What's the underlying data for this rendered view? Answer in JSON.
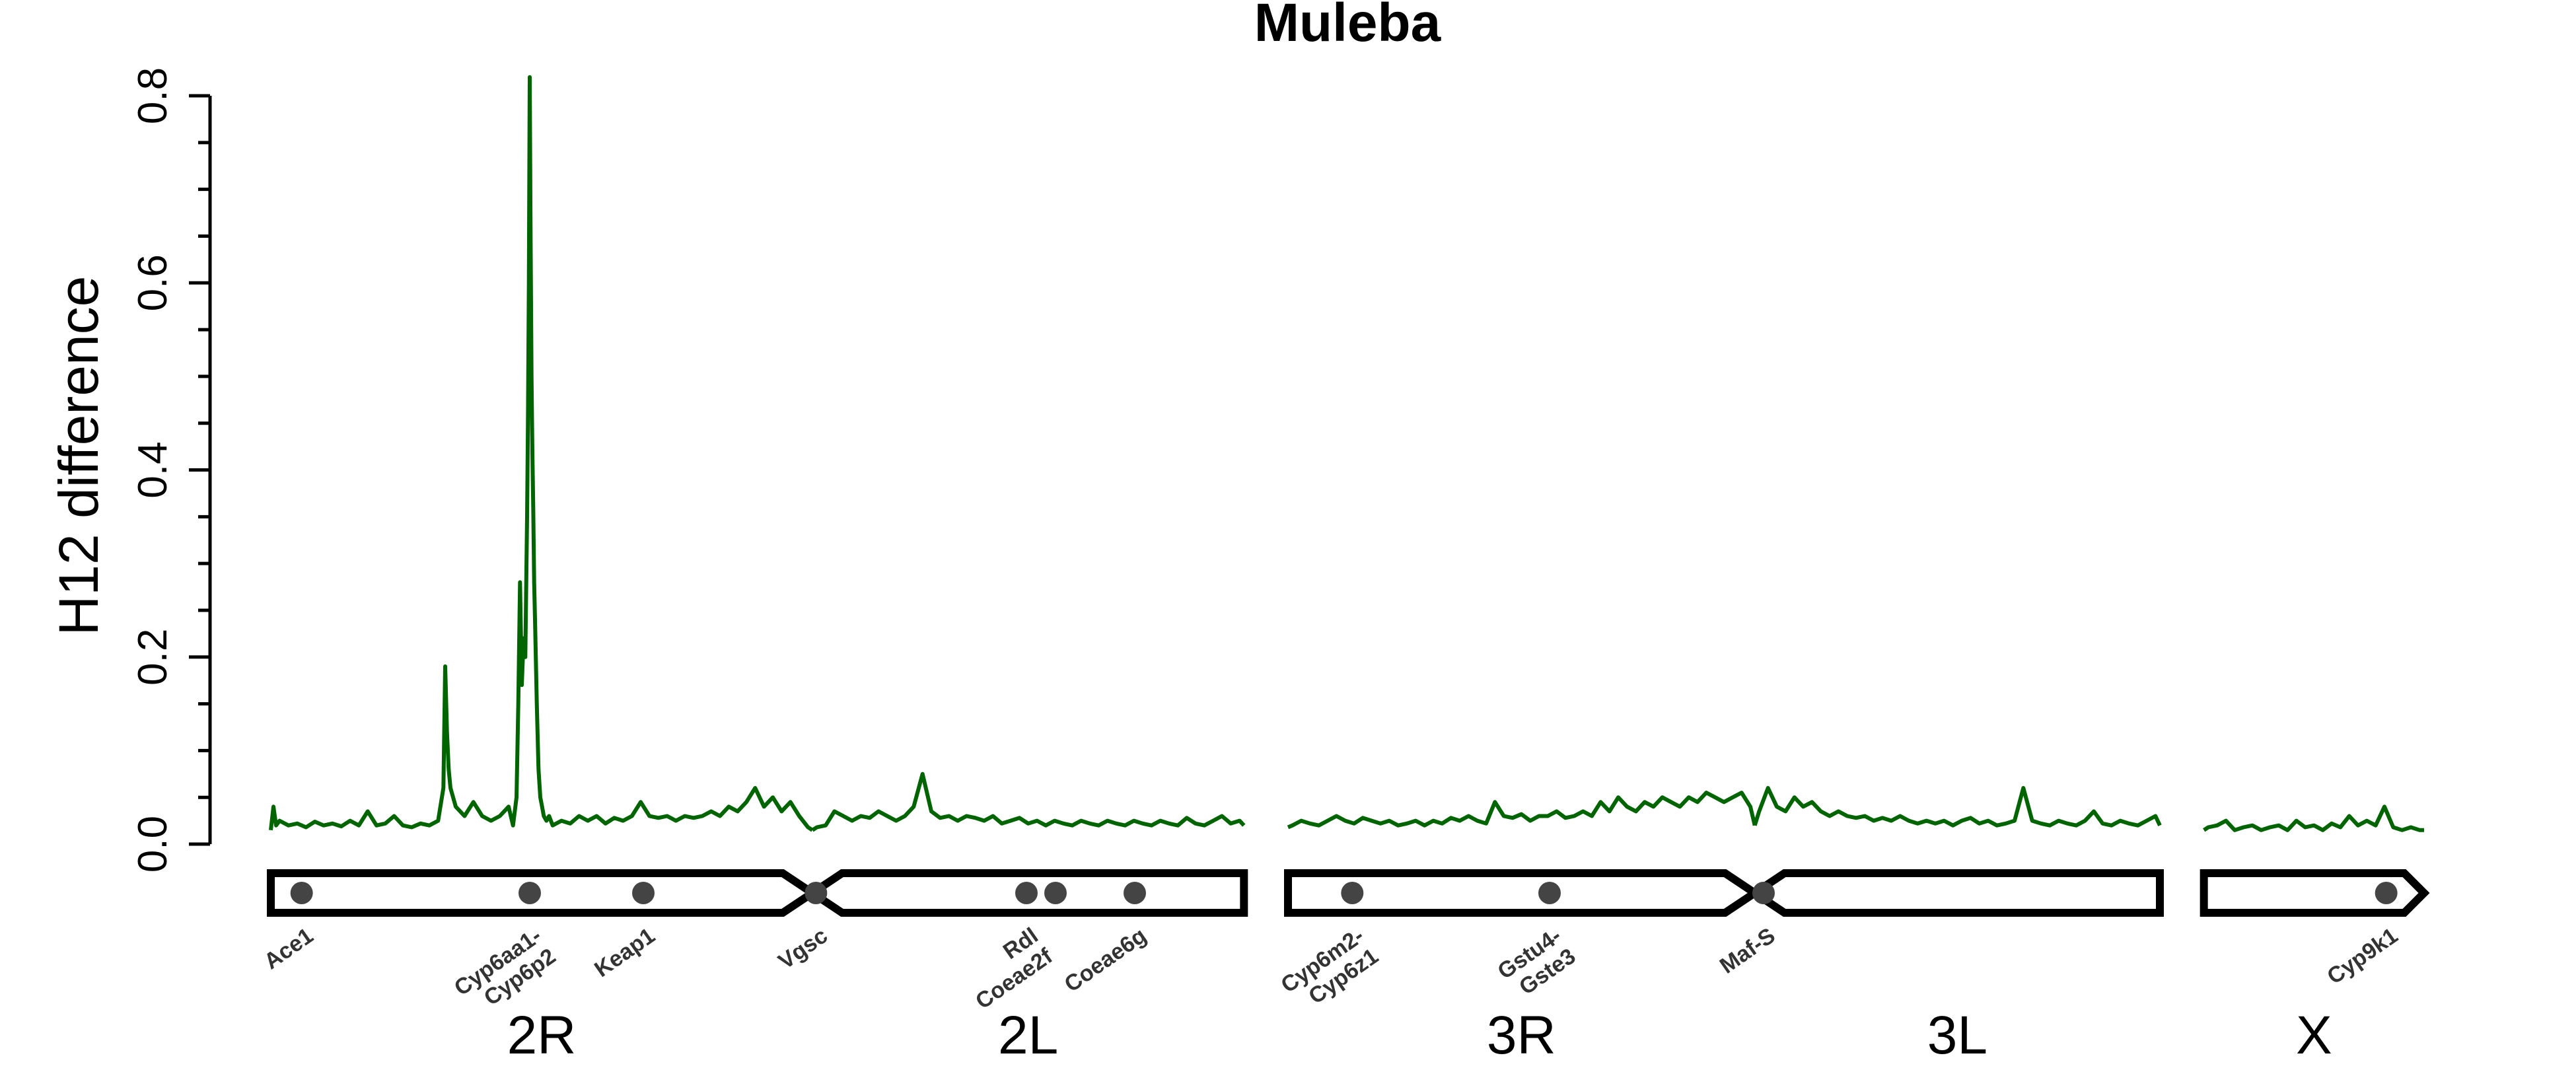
{
  "chart_data": {
    "type": "line",
    "title": "Muleba",
    "ylabel": "H12 difference",
    "xlabel": "",
    "ylim": [
      0,
      0.8
    ],
    "yticks": [
      "0.0",
      "0.2",
      "0.4",
      "0.6",
      "0.8"
    ],
    "series_color": "#006400",
    "chromosome_arms": [
      {
        "name": "2R",
        "start": 0.0,
        "end": 61.5,
        "centromere": "end"
      },
      {
        "name": "2L",
        "start": 61.5,
        "end": 110.5,
        "centromere": "start"
      },
      {
        "name": "3R",
        "start": 115.5,
        "end": 168.5,
        "centromere": "end"
      },
      {
        "name": "3L",
        "start": 168.5,
        "end": 214.5,
        "centromere": "start"
      },
      {
        "name": "X",
        "start": 219.5,
        "end": 244.5,
        "centromere": "none"
      }
    ],
    "genes": [
      {
        "label": "Ace1",
        "pos": 3.5
      },
      {
        "label": "Cyp6aa1-\nCyp6p2",
        "pos": 29.4
      },
      {
        "label": "Keap1",
        "pos": 42.3
      },
      {
        "label": "Vgsc",
        "pos": 61.9
      },
      {
        "label": "Rdl\nCoeae2f",
        "pos": 85.8
      },
      {
        "label": "",
        "pos": 89.1
      },
      {
        "label": "Coeae6g",
        "pos": 98.1
      },
      {
        "label": "Cyp6m2-\nCyp6z1",
        "pos": 122.8
      },
      {
        "label": "Gstu4-\nGste3",
        "pos": 145.2
      },
      {
        "label": "Maf-S",
        "pos": 169.5
      },
      {
        "label": "Cyp9k1",
        "pos": 240.2
      }
    ],
    "series": [
      {
        "arm": "2R",
        "x": [
          0,
          0.3,
          0.6,
          1,
          2,
          3,
          4,
          5,
          6,
          7,
          8,
          9,
          10,
          11,
          12,
          13,
          14,
          15,
          16,
          17,
          18,
          19,
          19.6,
          19.8,
          20,
          20.2,
          20.4,
          20.7,
          21,
          21.5,
          22,
          23,
          24,
          25,
          26,
          27,
          27.5,
          27.9,
          28.1,
          28.3,
          28.5,
          28.7,
          28.9,
          29.1,
          29.2,
          29.3,
          29.4,
          29.5,
          29.6,
          29.7,
          29.8,
          29.9,
          30,
          30.2,
          30.4,
          30.6,
          30.8,
          31,
          31.3,
          31.6,
          32,
          33,
          34,
          35,
          36,
          37,
          38,
          39,
          40,
          41,
          42,
          43,
          44,
          45,
          46,
          47,
          48,
          49,
          50,
          51,
          52,
          53,
          54,
          55,
          56,
          57,
          58,
          59,
          60,
          61,
          61.5
        ],
        "y": [
          0.015,
          0.04,
          0.02,
          0.025,
          0.02,
          0.022,
          0.018,
          0.024,
          0.02,
          0.022,
          0.019,
          0.025,
          0.02,
          0.035,
          0.02,
          0.022,
          0.03,
          0.02,
          0.018,
          0.022,
          0.02,
          0.025,
          0.06,
          0.19,
          0.12,
          0.08,
          0.06,
          0.05,
          0.04,
          0.035,
          0.03,
          0.045,
          0.03,
          0.025,
          0.03,
          0.04,
          0.02,
          0.05,
          0.15,
          0.28,
          0.17,
          0.22,
          0.2,
          0.35,
          0.45,
          0.6,
          0.82,
          0.65,
          0.5,
          0.42,
          0.36,
          0.28,
          0.24,
          0.15,
          0.08,
          0.05,
          0.04,
          0.03,
          0.025,
          0.03,
          0.02,
          0.025,
          0.022,
          0.03,
          0.025,
          0.03,
          0.022,
          0.028,
          0.025,
          0.03,
          0.045,
          0.03,
          0.028,
          0.03,
          0.025,
          0.03,
          0.028,
          0.03,
          0.035,
          0.03,
          0.04,
          0.035,
          0.045,
          0.06,
          0.04,
          0.05,
          0.035,
          0.045,
          0.03,
          0.018,
          0.015
        ]
      },
      {
        "arm": "2L",
        "x": [
          61.5,
          62,
          63,
          64,
          65,
          66,
          67,
          68,
          69,
          70,
          71,
          72,
          73,
          74,
          75,
          76,
          77,
          78,
          79,
          80,
          81,
          82,
          83,
          84,
          85,
          86,
          87,
          88,
          89,
          90,
          91,
          92,
          93,
          94,
          95,
          96,
          97,
          98,
          99,
          100,
          101,
          102,
          103,
          104,
          105,
          106,
          107,
          108,
          109,
          110,
          110.5
        ],
        "y": [
          0.015,
          0.018,
          0.02,
          0.035,
          0.03,
          0.025,
          0.03,
          0.028,
          0.035,
          0.03,
          0.025,
          0.03,
          0.04,
          0.075,
          0.035,
          0.028,
          0.03,
          0.025,
          0.03,
          0.028,
          0.025,
          0.03,
          0.022,
          0.025,
          0.028,
          0.022,
          0.025,
          0.02,
          0.025,
          0.022,
          0.02,
          0.025,
          0.022,
          0.02,
          0.025,
          0.022,
          0.02,
          0.025,
          0.022,
          0.02,
          0.025,
          0.022,
          0.02,
          0.028,
          0.022,
          0.02,
          0.025,
          0.03,
          0.022,
          0.025,
          0.02
        ]
      },
      {
        "arm": "3R",
        "x": [
          115.5,
          116,
          117,
          118,
          119,
          120,
          121,
          122,
          123,
          124,
          125,
          126,
          127,
          128,
          129,
          130,
          131,
          132,
          133,
          134,
          135,
          136,
          137,
          138,
          139,
          140,
          141,
          142,
          143,
          144,
          145,
          146,
          147,
          148,
          149,
          150,
          151,
          152,
          153,
          154,
          155,
          156,
          157,
          158,
          159,
          160,
          161,
          162,
          163,
          164,
          165,
          166,
          167,
          168,
          168.5
        ],
        "y": [
          0.018,
          0.02,
          0.025,
          0.022,
          0.02,
          0.025,
          0.03,
          0.025,
          0.022,
          0.028,
          0.025,
          0.022,
          0.025,
          0.02,
          0.022,
          0.025,
          0.02,
          0.025,
          0.022,
          0.028,
          0.025,
          0.03,
          0.025,
          0.022,
          0.045,
          0.03,
          0.028,
          0.032,
          0.025,
          0.03,
          0.03,
          0.035,
          0.028,
          0.03,
          0.035,
          0.03,
          0.045,
          0.035,
          0.05,
          0.04,
          0.035,
          0.045,
          0.04,
          0.05,
          0.045,
          0.04,
          0.05,
          0.045,
          0.055,
          0.05,
          0.045,
          0.05,
          0.055,
          0.04,
          0.02
        ]
      },
      {
        "arm": "3L",
        "x": [
          168.5,
          169,
          170,
          171,
          172,
          173,
          174,
          175,
          176,
          177,
          178,
          179,
          180,
          181,
          182,
          183,
          184,
          185,
          186,
          187,
          188,
          189,
          190,
          191,
          192,
          193,
          194,
          195,
          196,
          197,
          198,
          199,
          200,
          201,
          202,
          203,
          204,
          205,
          206,
          207,
          208,
          209,
          210,
          211,
          212,
          213,
          214,
          214.5
        ],
        "y": [
          0.02,
          0.035,
          0.06,
          0.04,
          0.035,
          0.05,
          0.04,
          0.045,
          0.035,
          0.03,
          0.035,
          0.03,
          0.028,
          0.03,
          0.025,
          0.028,
          0.025,
          0.03,
          0.025,
          0.022,
          0.025,
          0.022,
          0.025,
          0.02,
          0.025,
          0.028,
          0.022,
          0.025,
          0.02,
          0.022,
          0.025,
          0.06,
          0.025,
          0.022,
          0.02,
          0.025,
          0.022,
          0.02,
          0.025,
          0.035,
          0.022,
          0.02,
          0.025,
          0.022,
          0.02,
          0.025,
          0.03,
          0.02
        ]
      },
      {
        "arm": "X",
        "x": [
          219.5,
          220,
          221,
          222,
          223,
          224,
          225,
          226,
          227,
          228,
          229,
          230,
          231,
          232,
          233,
          234,
          235,
          236,
          237,
          238,
          239,
          240,
          241,
          242,
          243,
          244,
          244.5
        ],
        "y": [
          0.015,
          0.018,
          0.02,
          0.025,
          0.015,
          0.018,
          0.02,
          0.015,
          0.018,
          0.02,
          0.015,
          0.025,
          0.018,
          0.02,
          0.015,
          0.022,
          0.018,
          0.03,
          0.02,
          0.025,
          0.02,
          0.04,
          0.018,
          0.015,
          0.018,
          0.015,
          0.015
        ]
      }
    ]
  }
}
